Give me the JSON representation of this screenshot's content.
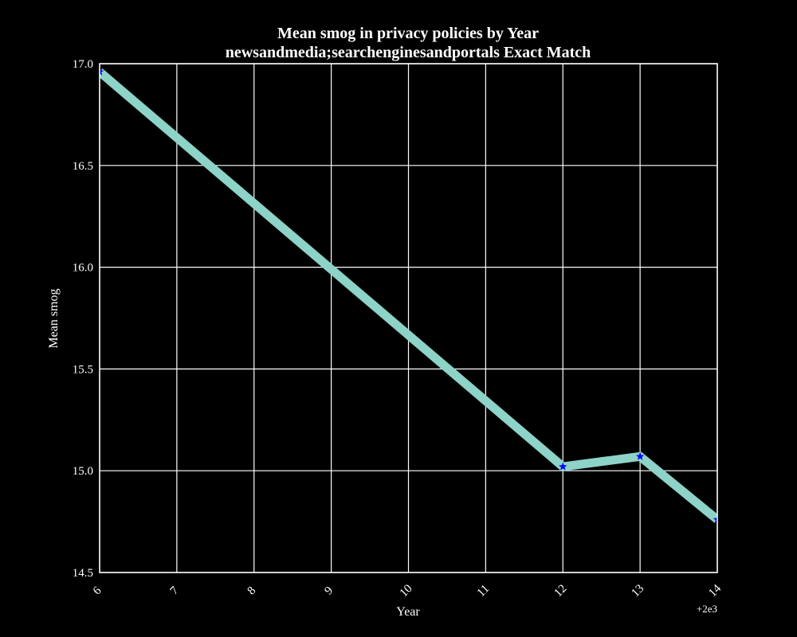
{
  "chart_data": {
    "type": "line",
    "title_line1": "Mean smog in privacy policies by Year",
    "title_line2": "newsandmedia;searchenginesandportals Exact Match",
    "xlabel": "Year",
    "ylabel": "Mean smog",
    "x_offset_label": "+2e3",
    "xlim": [
      6,
      14
    ],
    "ylim": [
      14.5,
      17.0
    ],
    "x_ticks": [
      "6",
      "7",
      "8",
      "9",
      "10",
      "11",
      "12",
      "13",
      "14"
    ],
    "y_ticks": [
      "14.5",
      "15.0",
      "15.5",
      "16.0",
      "16.5",
      "17.0"
    ],
    "grid": true,
    "series": [
      {
        "x": [
          6,
          12,
          13,
          14
        ],
        "y": [
          16.96,
          15.02,
          15.07,
          14.76
        ],
        "line_color": "#8dd3c7",
        "marker_color": "#0000ff",
        "marker": "star"
      }
    ],
    "colors": {
      "background": "#000000",
      "axes": "#ffffff",
      "grid": "#ffffff",
      "text": "#ffffff"
    }
  }
}
